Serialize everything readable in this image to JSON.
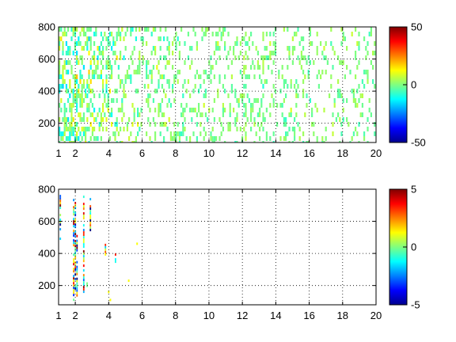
{
  "chart_data": [
    {
      "type": "heatmap",
      "title": "",
      "xlabel": "",
      "ylabel": "",
      "xlim": [
        1,
        20
      ],
      "ylim": [
        80,
        800
      ],
      "x_ticks": [
        "1",
        "2",
        "4",
        "6",
        "8",
        "10",
        "12",
        "14",
        "16",
        "18",
        "20"
      ],
      "y_ticks": [
        "200",
        "400",
        "600",
        "800"
      ],
      "grid": true,
      "colormap": "jet",
      "color_range": [
        -50,
        50
      ],
      "colorbar_ticks": [
        "50",
        "0",
        "-50"
      ],
      "density_profile": [
        {
          "x": 1,
          "fill": 0.85,
          "spread": 0.45
        },
        {
          "x": 2,
          "fill": 0.8,
          "spread": 0.45
        },
        {
          "x": 3,
          "fill": 0.7,
          "spread": 0.4
        },
        {
          "x": 4,
          "fill": 0.6,
          "spread": 0.35
        },
        {
          "x": 6,
          "fill": 0.45,
          "spread": 0.25
        },
        {
          "x": 10,
          "fill": 0.38,
          "spread": 0.2
        },
        {
          "x": 14,
          "fill": 0.32,
          "spread": 0.18
        },
        {
          "x": 20,
          "fill": 0.3,
          "spread": 0.18
        }
      ]
    },
    {
      "type": "heatmap",
      "title": "",
      "xlabel": "",
      "ylabel": "",
      "xlim": [
        1,
        20
      ],
      "ylim": [
        80,
        800
      ],
      "x_ticks": [
        "1",
        "2",
        "4",
        "6",
        "8",
        "10",
        "12",
        "14",
        "16",
        "18",
        "20"
      ],
      "y_ticks": [
        "200",
        "400",
        "600",
        "800"
      ],
      "grid": true,
      "colormap": "jet",
      "color_range": [
        -5,
        5
      ],
      "colorbar_ticks": [
        "5",
        "0",
        "-5"
      ],
      "streaks": [
        {
          "x": 1.1,
          "y_from": 480,
          "y_to": 780
        },
        {
          "x": 1.9,
          "y_from": 100,
          "y_to": 740
        },
        {
          "x": 2.0,
          "y_from": 180,
          "y_to": 720
        },
        {
          "x": 2.1,
          "y_from": 140,
          "y_to": 560
        },
        {
          "x": 2.5,
          "y_from": 160,
          "y_to": 760
        },
        {
          "x": 2.7,
          "y_from": 180,
          "y_to": 220
        },
        {
          "x": 2.9,
          "y_from": 540,
          "y_to": 760
        },
        {
          "x": 3.8,
          "y_from": 390,
          "y_to": 460
        },
        {
          "x": 4.4,
          "y_from": 350,
          "y_to": 400
        }
      ],
      "specks": [
        {
          "x": 4.0,
          "y": 160
        },
        {
          "x": 4.1,
          "y": 110
        },
        {
          "x": 5.2,
          "y": 230
        },
        {
          "x": 5.7,
          "y": 460
        }
      ]
    }
  ]
}
